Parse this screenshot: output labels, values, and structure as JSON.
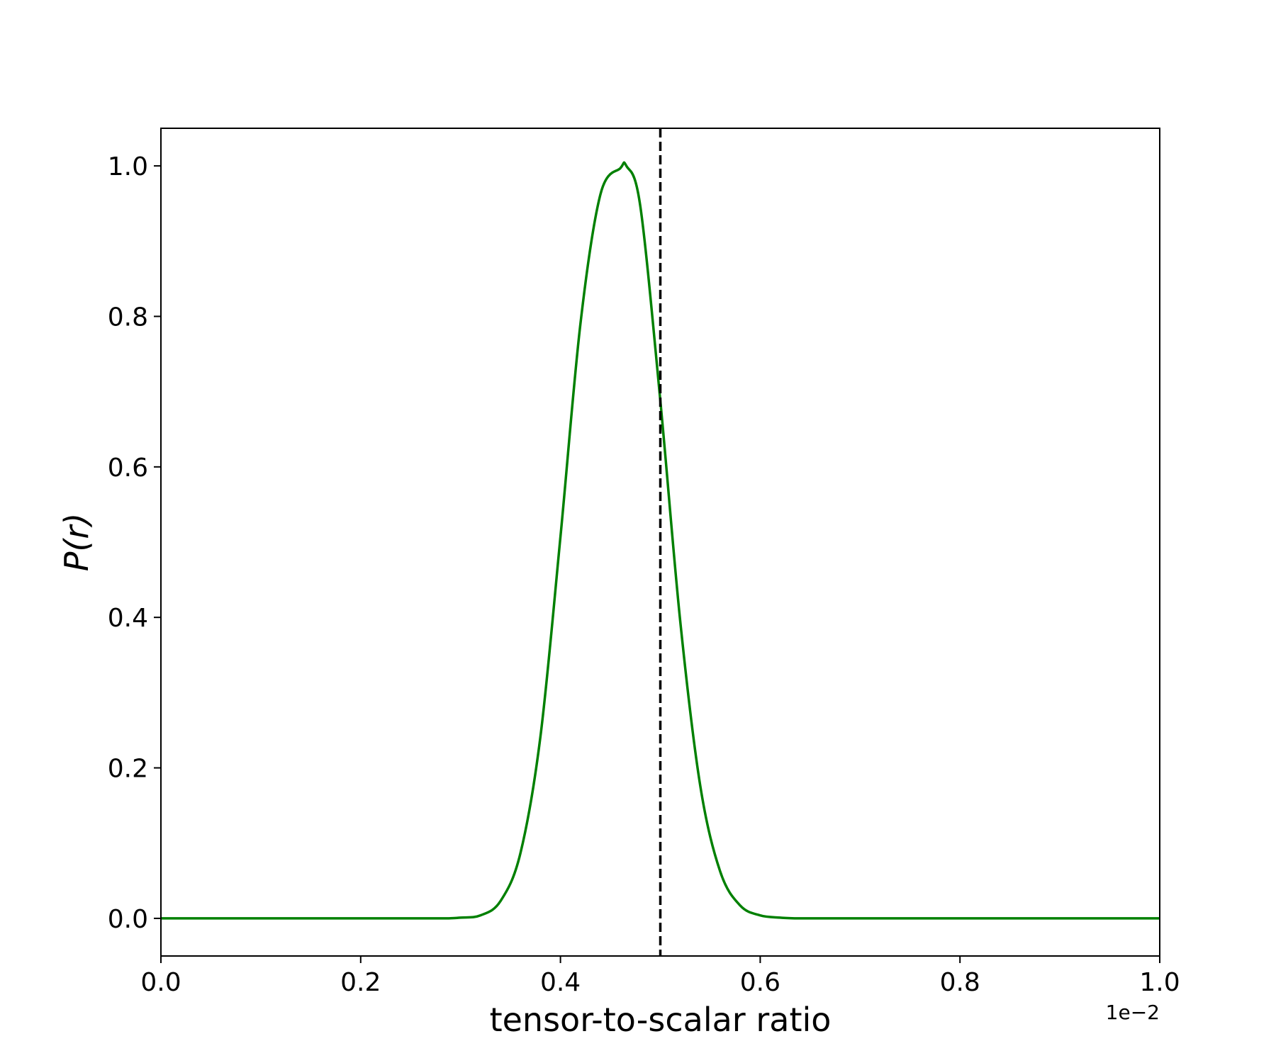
{
  "chart_data": {
    "type": "line",
    "title": "",
    "xlabel": "tensor-to-scalar ratio",
    "ylabel": "P(r)",
    "x_offset_label": "1e−2",
    "xlim": [
      0.0,
      1.0
    ],
    "ylim": [
      -0.05,
      1.05
    ],
    "xticks": [
      "0.0",
      "0.2",
      "0.4",
      "0.6",
      "0.8",
      "1.0"
    ],
    "yticks": [
      "0.0",
      "0.2",
      "0.4",
      "0.6",
      "0.8",
      "1.0"
    ],
    "grid": false,
    "legend": "none",
    "series": [
      {
        "color": "#008000",
        "x": [
          0.0,
          0.1,
          0.2,
          0.28,
          0.3,
          0.32,
          0.34,
          0.36,
          0.38,
          0.4,
          0.42,
          0.44,
          0.46,
          0.466,
          0.48,
          0.5,
          0.52,
          0.54,
          0.56,
          0.58,
          0.6,
          0.62,
          0.64,
          0.7,
          0.8,
          0.9,
          1.0
        ],
        "y": [
          0.0,
          0.0,
          0.0,
          0.0,
          0.001,
          0.004,
          0.023,
          0.087,
          0.242,
          0.507,
          0.79,
          0.962,
          0.997,
          1.0,
          0.946,
          0.688,
          0.394,
          0.176,
          0.062,
          0.017,
          0.004,
          0.001,
          0.0,
          0.0,
          0.0,
          0.0,
          0.0
        ]
      }
    ],
    "reference_line": {
      "x": 0.5,
      "style": "dashed",
      "color": "#000000"
    }
  }
}
